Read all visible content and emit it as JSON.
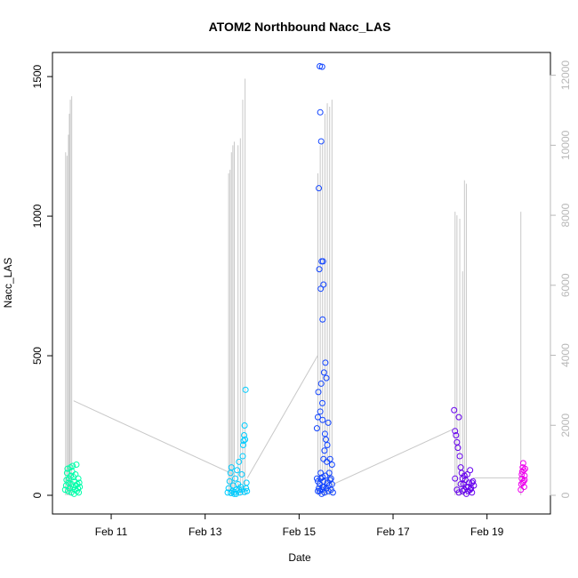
{
  "chart_data": {
    "type": "scatter",
    "title": "ATOM2 Northbound Nacc_LAS",
    "xlabel": "Date",
    "ylabel": "Nacc_LAS",
    "x_ticks": [
      "Feb 11",
      "Feb 13",
      "Feb 15",
      "Feb 17",
      "Feb 19"
    ],
    "y_ticks": [
      0,
      500,
      1000,
      1500
    ],
    "y_right_ticks": [
      0,
      2000,
      4000,
      6000,
      8000,
      10000,
      12000
    ],
    "ylim": [
      0,
      1580
    ],
    "y_right_lim": [
      0,
      12600
    ],
    "colors": {
      "axis": "#000000",
      "secondary_line": "#c8c8c8",
      "secondary_axis": "#b8b8b8"
    },
    "point_series": [
      {
        "date": "2023-02-10",
        "color": "#00ffaa",
        "points": [
          [
            10.02,
            20
          ],
          [
            10.04,
            35
          ],
          [
            10.05,
            55
          ],
          [
            10.06,
            80
          ],
          [
            10.07,
            95
          ],
          [
            10.08,
            15
          ],
          [
            10.09,
            45
          ],
          [
            10.1,
            60
          ],
          [
            10.12,
            25
          ],
          [
            10.13,
            100
          ],
          [
            10.14,
            70
          ],
          [
            10.15,
            10
          ],
          [
            10.16,
            40
          ],
          [
            10.17,
            85
          ],
          [
            10.18,
            105
          ],
          [
            10.19,
            30
          ],
          [
            10.2,
            65
          ],
          [
            10.21,
            5
          ],
          [
            10.22,
            50
          ],
          [
            10.23,
            20
          ],
          [
            10.24,
            75
          ],
          [
            10.25,
            35
          ],
          [
            10.26,
            110
          ],
          [
            10.27,
            15
          ],
          [
            10.28,
            40
          ],
          [
            10.29,
            25
          ],
          [
            10.3,
            60
          ],
          [
            10.31,
            10
          ],
          [
            10.32,
            45
          ],
          [
            10.33,
            30
          ]
        ]
      },
      {
        "date": "2023-02-13",
        "color": "#00ccff",
        "points": [
          [
            13.48,
            10
          ],
          [
            13.5,
            25
          ],
          [
            13.52,
            50
          ],
          [
            13.54,
            80
          ],
          [
            13.56,
            100
          ],
          [
            13.58,
            15
          ],
          [
            13.6,
            35
          ],
          [
            13.62,
            5
          ],
          [
            13.64,
            60
          ],
          [
            13.66,
            20
          ],
          [
            13.68,
            90
          ],
          [
            13.7,
            40
          ],
          [
            13.72,
            120
          ],
          [
            13.74,
            10
          ],
          [
            13.76,
            30
          ],
          [
            13.78,
            75
          ],
          [
            13.8,
            140
          ],
          [
            13.81,
            180
          ],
          [
            13.82,
            195
          ],
          [
            13.83,
            215
          ],
          [
            13.84,
            250
          ],
          [
            13.85,
            200
          ],
          [
            13.86,
            378
          ],
          [
            13.87,
            25
          ],
          [
            13.88,
            45
          ],
          [
            13.89,
            15
          ],
          [
            13.72,
            20
          ],
          [
            13.62,
            12
          ],
          [
            13.55,
            8
          ],
          [
            13.66,
            5
          ],
          [
            13.78,
            20
          ],
          [
            13.84,
            12
          ]
        ]
      },
      {
        "date": "2023-02-15",
        "color": "#1144ff",
        "points": [
          [
            15.38,
            240
          ],
          [
            15.4,
            280
          ],
          [
            15.41,
            370
          ],
          [
            15.42,
            1100
          ],
          [
            15.43,
            810
          ],
          [
            15.44,
            1537
          ],
          [
            15.45,
            1372
          ],
          [
            15.46,
            740
          ],
          [
            15.47,
            1268
          ],
          [
            15.48,
            838
          ],
          [
            15.49,
            1535
          ],
          [
            15.495,
            330
          ],
          [
            15.5,
            630
          ],
          [
            15.51,
            838
          ],
          [
            15.52,
            755
          ],
          [
            15.53,
            440
          ],
          [
            15.54,
            160
          ],
          [
            15.55,
            220
          ],
          [
            15.56,
            475
          ],
          [
            15.57,
            200
          ],
          [
            15.58,
            420
          ],
          [
            15.59,
            120
          ],
          [
            15.6,
            180
          ],
          [
            15.62,
            260
          ],
          [
            15.64,
            80
          ],
          [
            15.66,
            130
          ],
          [
            15.68,
            60
          ],
          [
            15.7,
            110
          ],
          [
            15.45,
            300
          ],
          [
            15.47,
            400
          ],
          [
            15.5,
            270
          ],
          [
            15.52,
            130
          ],
          [
            15.44,
            40
          ],
          [
            15.46,
            60
          ],
          [
            15.48,
            20
          ],
          [
            15.5,
            30
          ],
          [
            15.52,
            50
          ],
          [
            15.54,
            10
          ],
          [
            15.56,
            70
          ],
          [
            15.58,
            25
          ],
          [
            15.6,
            45
          ],
          [
            15.62,
            15
          ],
          [
            15.64,
            35
          ],
          [
            15.66,
            55
          ],
          [
            15.68,
            20
          ],
          [
            15.7,
            40
          ],
          [
            15.72,
            10
          ],
          [
            15.4,
            50
          ],
          [
            15.42,
            25
          ],
          [
            15.44,
            15
          ],
          [
            15.46,
            80
          ],
          [
            15.48,
            5
          ],
          [
            15.5,
            65
          ],
          [
            15.52,
            30
          ],
          [
            15.4,
            15
          ],
          [
            15.38,
            60
          ]
        ]
      },
      {
        "date": "2023-02-18",
        "color": "#6600ee",
        "points": [
          [
            18.3,
            305
          ],
          [
            18.32,
            230
          ],
          [
            18.34,
            215
          ],
          [
            18.36,
            190
          ],
          [
            18.38,
            170
          ],
          [
            18.4,
            280
          ],
          [
            18.42,
            140
          ],
          [
            18.44,
            100
          ],
          [
            18.46,
            80
          ],
          [
            18.48,
            60
          ],
          [
            18.5,
            40
          ],
          [
            18.52,
            20
          ],
          [
            18.54,
            55
          ],
          [
            18.56,
            30
          ],
          [
            18.58,
            75
          ],
          [
            18.6,
            15
          ],
          [
            18.62,
            45
          ],
          [
            18.64,
            90
          ],
          [
            18.66,
            25
          ],
          [
            18.68,
            10
          ],
          [
            18.7,
            50
          ],
          [
            18.72,
            35
          ],
          [
            18.32,
            60
          ],
          [
            18.36,
            20
          ],
          [
            18.4,
            10
          ],
          [
            18.44,
            40
          ],
          [
            18.48,
            15
          ],
          [
            18.52,
            70
          ],
          [
            18.56,
            5
          ],
          [
            18.6,
            30
          ],
          [
            18.64,
            20
          ],
          [
            18.68,
            45
          ]
        ]
      },
      {
        "date": "2023-02-19",
        "color": "#ee00ee",
        "points": [
          [
            19.72,
            20
          ],
          [
            19.73,
            40
          ],
          [
            19.74,
            60
          ],
          [
            19.75,
            85
          ],
          [
            19.76,
            100
          ],
          [
            19.77,
            115
          ],
          [
            19.78,
            50
          ],
          [
            19.79,
            30
          ],
          [
            19.8,
            70
          ],
          [
            19.81,
            95
          ],
          [
            19.74,
            75
          ],
          [
            19.76,
            45
          ],
          [
            19.78,
            90
          ],
          [
            19.8,
            55
          ]
        ]
      }
    ],
    "secondary_line_segments": [
      {
        "day": 10.0,
        "spikes": [
          [
            10.03,
            9800
          ],
          [
            10.06,
            9700
          ],
          [
            10.09,
            10300
          ],
          [
            10.11,
            10900
          ],
          [
            10.13,
            11300
          ],
          [
            10.16,
            11400
          ]
        ]
      },
      {
        "day": 13.5,
        "spikes": [
          [
            13.5,
            9200
          ],
          [
            13.53,
            9300
          ],
          [
            13.56,
            9800
          ],
          [
            13.59,
            10000
          ],
          [
            13.62,
            10100
          ],
          [
            13.7,
            10000
          ],
          [
            13.75,
            10200
          ],
          [
            13.8,
            11300
          ],
          [
            13.85,
            11900
          ]
        ]
      },
      {
        "day": 15.4,
        "spikes": [
          [
            15.4,
            9200
          ],
          [
            15.45,
            10000
          ],
          [
            15.5,
            10100
          ],
          [
            15.55,
            10900
          ],
          [
            15.6,
            11200
          ],
          [
            15.65,
            11100
          ],
          [
            15.7,
            11300
          ]
        ]
      },
      {
        "day": 18.3,
        "spikes": [
          [
            18.32,
            8100
          ],
          [
            18.36,
            8000
          ],
          [
            18.42,
            7900
          ],
          [
            18.48,
            6400
          ],
          [
            18.52,
            9000
          ],
          [
            18.56,
            8900
          ]
        ]
      },
      {
        "day": 19.7,
        "spikes": [
          [
            19.72,
            8100
          ]
        ]
      }
    ],
    "secondary_connectors": [
      [
        [
          10.2,
          2700
        ],
        [
          13.6,
          600
        ]
      ],
      [
        [
          13.9,
          500
        ],
        [
          15.4,
          4000
        ]
      ],
      [
        [
          15.7,
          300
        ],
        [
          18.3,
          1900
        ]
      ],
      [
        [
          18.7,
          500
        ],
        [
          19.7,
          500
        ]
      ]
    ]
  }
}
